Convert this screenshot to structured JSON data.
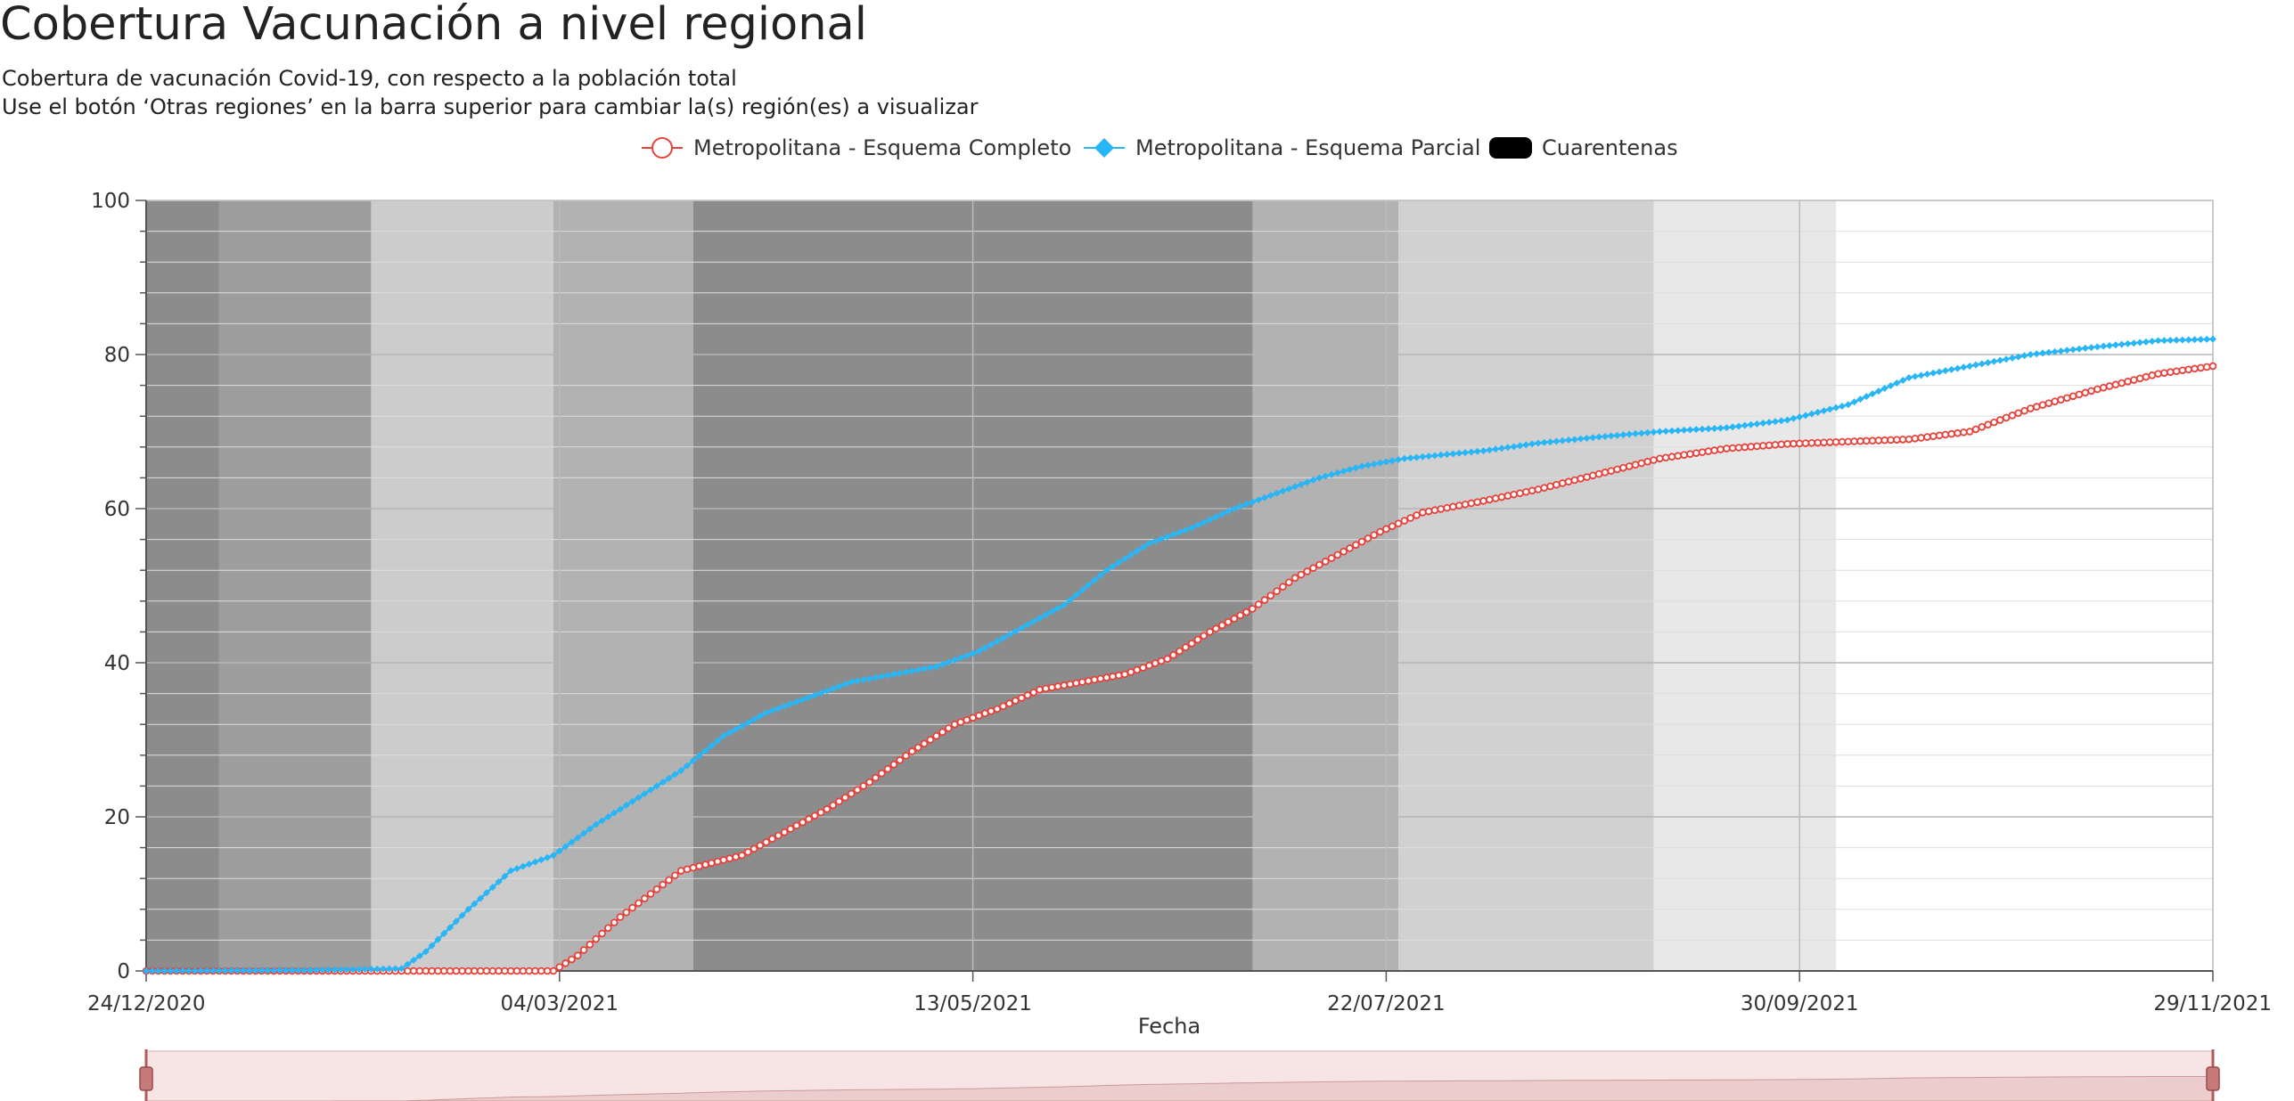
{
  "header": {
    "title": "Cobertura Vacunación a nivel regional",
    "subtitle_1": "Cobertura de vacunación Covid-19, con respecto a la población total",
    "subtitle_2": "Use el botón ‘Otras regiones’ en la barra superior para cambiar la(s) región(es) a visualizar"
  },
  "legend": {
    "items": [
      {
        "label": "Metropolitana - Esquema Completo",
        "color": "#e8413a",
        "symbol": "circle-icon"
      },
      {
        "label": "Metropolitana - Esquema Parcial",
        "color": "#29b6f6",
        "symbol": "diamond-icon"
      },
      {
        "label": "Cuarentenas",
        "color": "#000000",
        "symbol": "roundrect-icon"
      }
    ]
  },
  "chart_data": {
    "type": "line",
    "xlabel": "Fecha",
    "ylabel": "",
    "x_range": [
      "2020-12-24",
      "2021-11-29"
    ],
    "ylim": [
      0,
      100
    ],
    "y_ticks": [
      0,
      20,
      40,
      60,
      80,
      100
    ],
    "x_tick_labels": [
      "24/12/2020",
      "04/03/2021",
      "13/05/2021",
      "22/07/2021",
      "30/09/2021",
      "29/11/2021"
    ],
    "grid": true,
    "legend_position": "top-center",
    "series": [
      {
        "name": "Metropolitana - Esquema Completo",
        "color": "#e8413a",
        "marker": "circle",
        "points": [
          [
            "2020-12-24",
            0
          ],
          [
            "2021-02-01",
            0
          ],
          [
            "2021-03-01",
            0
          ],
          [
            "2021-03-05",
            2
          ],
          [
            "2021-03-12",
            7
          ],
          [
            "2021-03-22",
            13
          ],
          [
            "2021-04-01",
            15
          ],
          [
            "2021-04-08",
            18
          ],
          [
            "2021-04-15",
            21
          ],
          [
            "2021-04-22",
            24.5
          ],
          [
            "2021-04-29",
            28.5
          ],
          [
            "2021-05-06",
            32
          ],
          [
            "2021-05-13",
            34
          ],
          [
            "2021-05-20",
            36.5
          ],
          [
            "2021-05-27",
            37.5
          ],
          [
            "2021-06-03",
            38.5
          ],
          [
            "2021-06-10",
            40.5
          ],
          [
            "2021-06-17",
            44
          ],
          [
            "2021-06-24",
            47
          ],
          [
            "2021-07-01",
            51
          ],
          [
            "2021-07-08",
            54
          ],
          [
            "2021-07-15",
            57
          ],
          [
            "2021-07-22",
            59.5
          ],
          [
            "2021-08-01",
            61
          ],
          [
            "2021-08-10",
            62.5
          ],
          [
            "2021-08-20",
            64.5
          ],
          [
            "2021-08-30",
            66.5
          ],
          [
            "2021-09-10",
            67.8
          ],
          [
            "2021-09-20",
            68.4
          ],
          [
            "2021-09-30",
            68.7
          ],
          [
            "2021-10-10",
            69
          ],
          [
            "2021-10-20",
            70
          ],
          [
            "2021-10-30",
            73
          ],
          [
            "2021-11-10",
            75.5
          ],
          [
            "2021-11-20",
            77.5
          ],
          [
            "2021-11-29",
            78.5
          ]
        ]
      },
      {
        "name": "Metropolitana - Esquema Parcial",
        "color": "#29b6f6",
        "marker": "diamond",
        "points": [
          [
            "2020-12-24",
            0
          ],
          [
            "2021-01-20",
            0.1
          ],
          [
            "2021-02-04",
            0.3
          ],
          [
            "2021-02-08",
            2.5
          ],
          [
            "2021-02-15",
            8
          ],
          [
            "2021-02-22",
            13
          ],
          [
            "2021-03-01",
            15
          ],
          [
            "2021-03-08",
            19
          ],
          [
            "2021-03-15",
            22.5
          ],
          [
            "2021-03-22",
            26
          ],
          [
            "2021-03-29",
            30.5
          ],
          [
            "2021-04-05",
            33.5
          ],
          [
            "2021-04-12",
            35.5
          ],
          [
            "2021-04-19",
            37.5
          ],
          [
            "2021-04-26",
            38.5
          ],
          [
            "2021-05-03",
            39.5
          ],
          [
            "2021-05-10",
            41.5
          ],
          [
            "2021-05-17",
            44.5
          ],
          [
            "2021-05-24",
            47.5
          ],
          [
            "2021-05-31",
            52
          ],
          [
            "2021-06-07",
            55.5
          ],
          [
            "2021-06-14",
            57.5
          ],
          [
            "2021-06-21",
            60
          ],
          [
            "2021-06-28",
            62
          ],
          [
            "2021-07-05",
            64
          ],
          [
            "2021-07-12",
            65.5
          ],
          [
            "2021-07-19",
            66.5
          ],
          [
            "2021-08-01",
            67.5
          ],
          [
            "2021-08-10",
            68.5
          ],
          [
            "2021-08-20",
            69.3
          ],
          [
            "2021-08-30",
            70
          ],
          [
            "2021-09-10",
            70.5
          ],
          [
            "2021-09-20",
            71.5
          ],
          [
            "2021-09-30",
            73.5
          ],
          [
            "2021-10-10",
            77
          ],
          [
            "2021-10-20",
            78.5
          ],
          [
            "2021-10-30",
            80
          ],
          [
            "2021-11-10",
            81
          ],
          [
            "2021-11-20",
            81.8
          ],
          [
            "2021-11-29",
            82
          ]
        ]
      }
    ],
    "quarantine_bands": [
      {
        "start": "2020-12-24",
        "end": "2021-01-05",
        "opacity": 0.45
      },
      {
        "start": "2021-01-05",
        "end": "2021-01-30",
        "opacity": 0.38
      },
      {
        "start": "2021-01-30",
        "end": "2021-03-01",
        "opacity": 0.2
      },
      {
        "start": "2021-03-01",
        "end": "2021-03-24",
        "opacity": 0.3
      },
      {
        "start": "2021-03-24",
        "end": "2021-06-24",
        "opacity": 0.45
      },
      {
        "start": "2021-06-24",
        "end": "2021-07-18",
        "opacity": 0.3
      },
      {
        "start": "2021-07-18",
        "end": "2021-08-29",
        "opacity": 0.18
      },
      {
        "start": "2021-08-29",
        "end": "2021-09-28",
        "opacity": 0.09
      }
    ]
  },
  "slider": {
    "start_handle": "slider-handle-start",
    "end_handle": "slider-handle-end"
  }
}
